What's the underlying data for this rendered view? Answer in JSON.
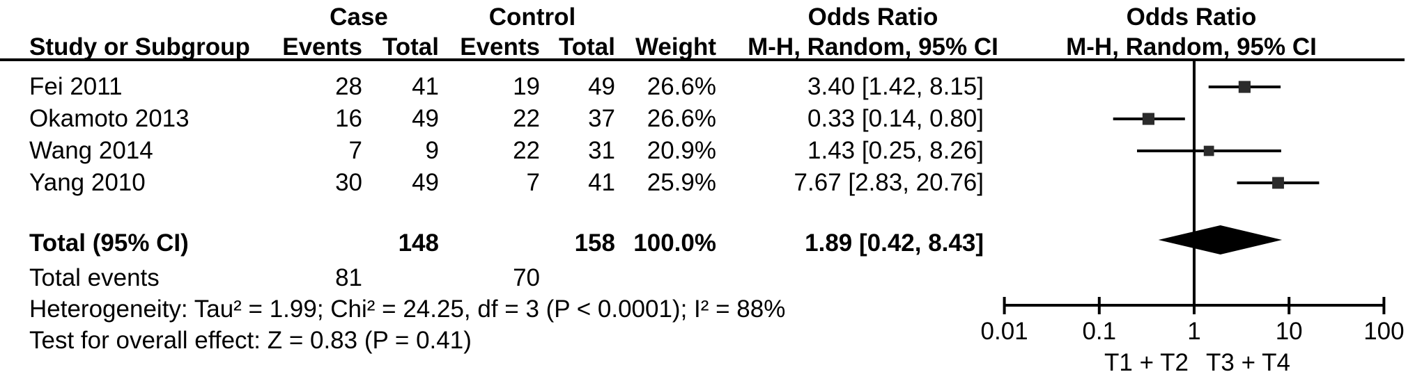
{
  "table": {
    "headers": {
      "case_group": "Case",
      "control_group": "Control",
      "or_text_col": "Odds Ratio",
      "or_plot_col": "Odds Ratio",
      "study": "Study or Subgroup",
      "case_events": "Events",
      "case_total": "Total",
      "control_events": "Events",
      "control_total": "Total",
      "weight": "Weight",
      "mh_text_col": "M-H, Random, 95% CI",
      "mh_plot_col": "M-H, Random, 95% CI"
    },
    "rows": [
      {
        "study": "Fei 2011",
        "case_events": "28",
        "case_total": "41",
        "control_events": "19",
        "control_total": "49",
        "weight": "26.6%",
        "or_ci": "3.40 [1.42, 8.15]"
      },
      {
        "study": "Okamoto 2013",
        "case_events": "16",
        "case_total": "49",
        "control_events": "22",
        "control_total": "37",
        "weight": "26.6%",
        "or_ci": "0.33 [0.14, 0.80]"
      },
      {
        "study": "Wang 2014",
        "case_events": "7",
        "case_total": "9",
        "control_events": "22",
        "control_total": "31",
        "weight": "20.9%",
        "or_ci": "1.43 [0.25, 8.26]"
      },
      {
        "study": "Yang 2010",
        "case_events": "30",
        "case_total": "49",
        "control_events": "7",
        "control_total": "41",
        "weight": "25.9%",
        "or_ci": "7.67 [2.83, 20.76]"
      }
    ],
    "total_row": {
      "label": "Total (95% CI)",
      "case_total": "148",
      "control_total": "158",
      "weight": "100.0%",
      "or_ci": "1.89 [0.42, 8.43]"
    },
    "total_events_row": {
      "label": "Total events",
      "case_events": "81",
      "control_events": "70"
    },
    "heterogeneity": "Heterogeneity: Tau² = 1.99; Chi² = 24.25, df = 3 (P < 0.0001); I² = 88%",
    "overall_effect": "Test for overall effect: Z = 0.83 (P = 0.41)"
  },
  "chart_data": {
    "type": "forest",
    "effect_measure": "Odds Ratio",
    "model": "M-H, Random, 95% CI",
    "x_scale": "log10",
    "x_range": [
      0.01,
      100
    ],
    "x_ticks": [
      "0.01",
      "0.1",
      "1",
      "10",
      "100"
    ],
    "null_line": 1,
    "favours_left": "T1 + T2",
    "favours_right": "T3 + T4",
    "studies": [
      {
        "name": "Fei 2011",
        "or": 3.4,
        "ci_low": 1.42,
        "ci_high": 8.15,
        "weight_pct": 26.6
      },
      {
        "name": "Okamoto 2013",
        "or": 0.33,
        "ci_low": 0.14,
        "ci_high": 0.8,
        "weight_pct": 26.6
      },
      {
        "name": "Wang 2014",
        "or": 1.43,
        "ci_low": 0.25,
        "ci_high": 8.26,
        "weight_pct": 20.9
      },
      {
        "name": "Yang 2010",
        "or": 7.67,
        "ci_low": 2.83,
        "ci_high": 20.76,
        "weight_pct": 25.9
      }
    ],
    "total": {
      "or": 1.89,
      "ci_low": 0.42,
      "ci_high": 8.43,
      "weight_pct": 100.0
    }
  },
  "colors": {
    "text": "#000000",
    "line": "#000000",
    "square": "#2b2b2b",
    "diamond": "#000000",
    "background": "#ffffff"
  }
}
